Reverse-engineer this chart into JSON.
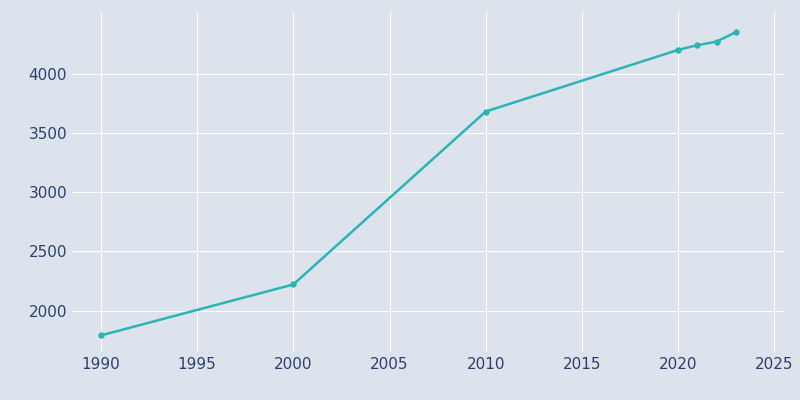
{
  "years": [
    1990,
    2000,
    2010,
    2020,
    2021,
    2022,
    2023
  ],
  "population": [
    1790,
    2220,
    3680,
    4200,
    4240,
    4270,
    4350
  ],
  "line_color": "#2ab5b5",
  "marker_color": "#2ab5b5",
  "fig_background_color": "#dce3ed",
  "plot_background_color": "#dce3ed",
  "grid_color": "#ffffff",
  "tick_color": "#2e3f6e",
  "xlim": [
    1988.5,
    2025.5
  ],
  "ylim": [
    1650,
    4520
  ],
  "xticks": [
    1990,
    1995,
    2000,
    2005,
    2010,
    2015,
    2020,
    2025
  ],
  "yticks": [
    2000,
    2500,
    3000,
    3500,
    4000
  ],
  "marker_size": 4,
  "line_width": 1.8
}
